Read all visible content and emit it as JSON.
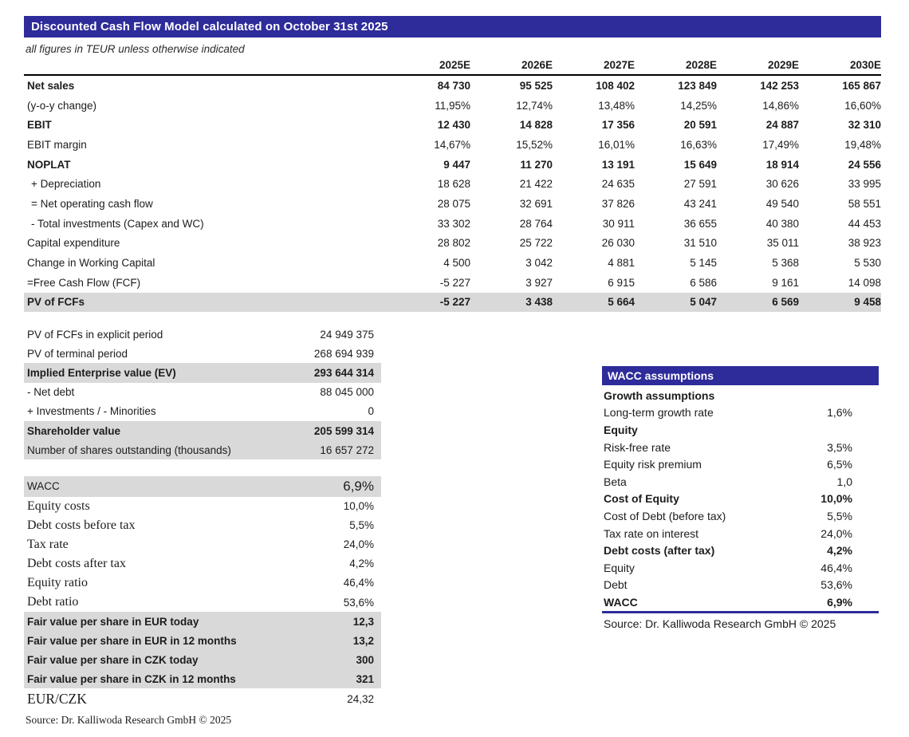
{
  "colors": {
    "accent": "#2e2b9a",
    "shade": "#d9d9d9"
  },
  "header": {
    "title": "Discounted Cash Flow Model calculated on October 31st 2025",
    "subtitle": "all figures in TEUR unless otherwise indicated"
  },
  "dcf_table": {
    "year_columns": [
      "2025E",
      "2026E",
      "2027E",
      "2028E",
      "2029E",
      "2030E"
    ],
    "rows": [
      {
        "label": "Net sales",
        "bold": true,
        "values": [
          "84 730",
          "95 525",
          "108 402",
          "123 849",
          "142 253",
          "165 867"
        ]
      },
      {
        "label": "(y-o-y change)",
        "values": [
          "11,95%",
          "12,74%",
          "13,48%",
          "14,25%",
          "14,86%",
          "16,60%"
        ]
      },
      {
        "label": "EBIT",
        "bold": true,
        "values": [
          "12 430",
          "14 828",
          "17 356",
          "20 591",
          "24 887",
          "32 310"
        ]
      },
      {
        "label": "EBIT margin",
        "values": [
          "14,67%",
          "15,52%",
          "16,01%",
          "16,63%",
          "17,49%",
          "19,48%"
        ]
      },
      {
        "label": "NOPLAT",
        "bold": true,
        "values": [
          "9 447",
          "11 270",
          "13 191",
          "15 649",
          "18 914",
          "24 556"
        ]
      },
      {
        "label": "+ Depreciation",
        "indent": true,
        "values": [
          "18 628",
          "21 422",
          "24 635",
          "27 591",
          "30 626",
          "33 995"
        ]
      },
      {
        "label": "= Net operating cash flow",
        "indent": true,
        "values": [
          "28 075",
          "32 691",
          "37 826",
          "43 241",
          "49 540",
          "58 551"
        ]
      },
      {
        "label": "- Total investments (Capex and WC)",
        "indent": true,
        "values": [
          "33 302",
          "28 764",
          "30 911",
          "36 655",
          "40 380",
          "44 453"
        ]
      },
      {
        "label": "Capital expenditure",
        "values": [
          "28 802",
          "25 722",
          "26 030",
          "31 510",
          "35 011",
          "38 923"
        ]
      },
      {
        "label": "Change in Working Capital",
        "values": [
          "4 500",
          "3 042",
          "4 881",
          "5 145",
          "5 368",
          "5 530"
        ]
      },
      {
        "label": "=Free Cash Flow (FCF)",
        "values": [
          "-5 227",
          "3 927",
          "6 915",
          "6 586",
          "9 161",
          "14 098"
        ]
      },
      {
        "label": "PV of FCFs",
        "bold": true,
        "shaded": true,
        "values": [
          "-5 227",
          "3 438",
          "5 664",
          "5 047",
          "6 569",
          "9 458"
        ]
      }
    ]
  },
  "valuation": {
    "rows": [
      {
        "label": "PV of FCFs in explicit period",
        "value": "24 949 375"
      },
      {
        "label": "PV of terminal period",
        "value": "268 694 939"
      },
      {
        "label": "Implied Enterprise value (EV)",
        "value": "293 644 314",
        "bold": true,
        "shaded": true
      },
      {
        "label": "- Net debt",
        "value": "88 045 000"
      },
      {
        "label": "+ Investments / - Minorities",
        "value": "0"
      },
      {
        "label": "Shareholder value",
        "value": "205 599 314",
        "bold": true,
        "shaded": true
      },
      {
        "label": "Number of shares outstanding (thousands)",
        "value": "16 657 272",
        "shaded": true
      }
    ]
  },
  "wacc_block": {
    "rows": [
      {
        "label": "WACC",
        "value": "6,9%",
        "shaded": true,
        "sans_label": true,
        "large_value": true,
        "tall": true
      },
      {
        "label": "Equity costs",
        "value": "10,0%"
      },
      {
        "label": "Debt costs before tax",
        "value": "5,5%"
      },
      {
        "label": "Tax rate",
        "value": "24,0%"
      },
      {
        "label": "Debt costs after tax",
        "value": "4,2%"
      },
      {
        "label": "Equity ratio",
        "value": "46,4%"
      },
      {
        "label": "Debt ratio",
        "value": "53,6%"
      },
      {
        "label": "Fair value per share in EUR today",
        "value": "12,3",
        "bold": true,
        "shaded": true,
        "sans_label": true
      },
      {
        "label": "Fair value per share in EUR in 12 months",
        "value": "13,2",
        "bold": true,
        "shaded": true,
        "sans_label": true
      },
      {
        "label": "Fair value per share in CZK today",
        "value": "300",
        "bold": true,
        "shaded": true,
        "sans_label": true
      },
      {
        "label": "Fair value per share in CZK in 12 months",
        "value": "321",
        "bold": true,
        "shaded": true,
        "sans_label": true
      },
      {
        "label": "EUR/CZK",
        "value": "24,32",
        "large_label": true,
        "tall": true
      }
    ],
    "source": "Source: Dr. Kalliwoda Research GmbH © 2025"
  },
  "wacc_assumptions": {
    "title": "WACC assumptions",
    "rows": [
      {
        "label": "Growth assumptions",
        "value": "",
        "bold": true
      },
      {
        "label": "Long-term growth rate",
        "value": "1,6%"
      },
      {
        "label": "Equity",
        "value": "",
        "bold": true
      },
      {
        "label": "Risk-free rate",
        "value": "3,5%"
      },
      {
        "label": "Equity risk premium",
        "value": "6,5%"
      },
      {
        "label": "Beta",
        "value": "1,0"
      },
      {
        "label": "Cost of Equity",
        "value": "10,0%",
        "bold": true
      },
      {
        "label": "Cost of Debt (before tax)",
        "value": "5,5%"
      },
      {
        "label": "Tax rate on interest",
        "value": "24,0%"
      },
      {
        "label": "Debt costs (after tax)",
        "value": "4,2%",
        "bold": true
      },
      {
        "label": "Equity",
        "value": "46,4%"
      },
      {
        "label": "Debt",
        "value": "53,6%"
      },
      {
        "label": "WACC",
        "value": "6,9%",
        "bold": true
      }
    ],
    "source": "Source: Dr. Kalliwoda Research GmbH © 2025"
  }
}
